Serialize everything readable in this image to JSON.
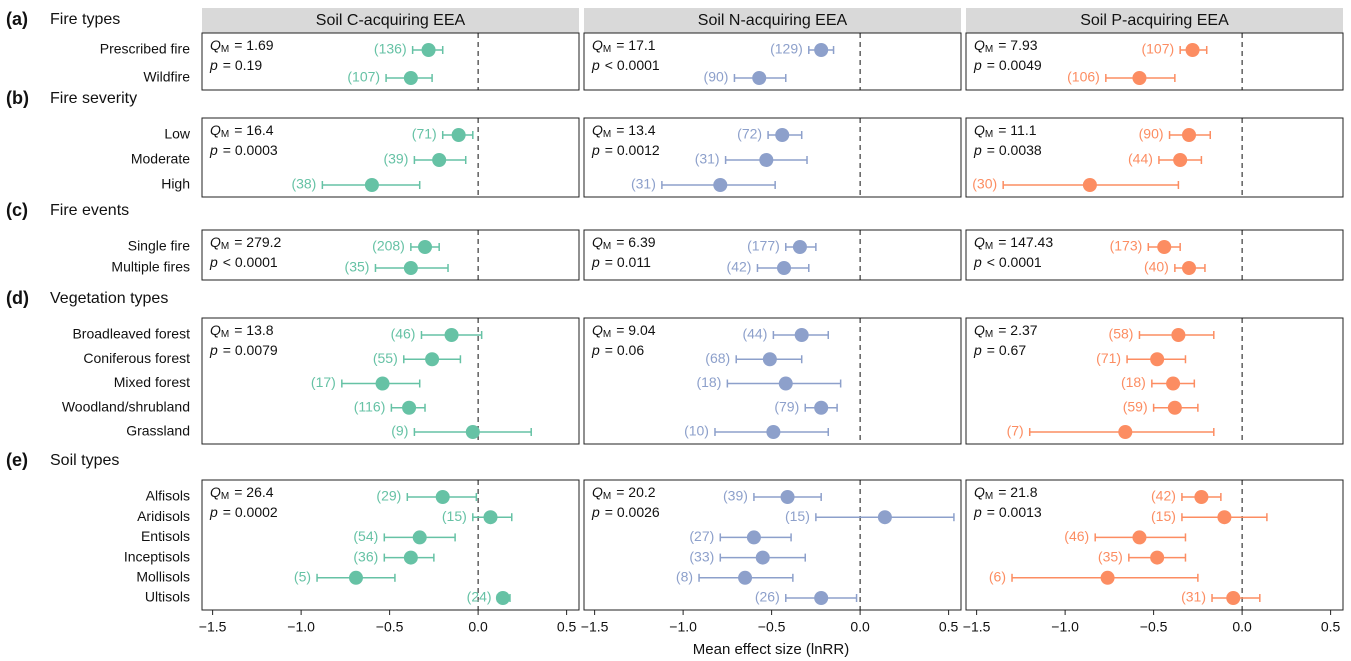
{
  "chart_data": {
    "type": "forest",
    "xlabel": "Mean effect size (lnRR)",
    "xlim": [
      -1.56,
      0.57
    ],
    "xticks": [
      {
        "value": -1.5,
        "label": "−1.5"
      },
      {
        "value": -1,
        "label": "−1.0"
      },
      {
        "value": -0.5,
        "label": "−0.5"
      },
      {
        "value": 0,
        "label": "0.0"
      },
      0.5
    ],
    "stat_q": "Q",
    "stat_sub": "M",
    "stat_p": "p",
    "groups": [
      {
        "tag": "(a)",
        "title": "Fire types",
        "categories": [
          "Prescribed fire",
          "Wildfire"
        ]
      },
      {
        "tag": "(b)",
        "title": "Fire severity",
        "categories": [
          "Low",
          "Moderate",
          "High"
        ]
      },
      {
        "tag": "(c)",
        "title": "Fire events",
        "categories": [
          "Single fire",
          "Multiple fires"
        ]
      },
      {
        "tag": "(d)",
        "title": "Vegetation types",
        "categories": [
          "Broadleaved forest",
          "Coniferous forest",
          "Mixed forest",
          "Woodland/shrubland",
          "Grassland"
        ]
      },
      {
        "tag": "(e)",
        "title": "Soil types",
        "categories": [
          "Alfisols",
          "Aridisols",
          "Entisols",
          "Inceptisols",
          "Mollisols",
          "Ultisols"
        ]
      }
    ],
    "series": [
      {
        "name": "Soil C-acquiring EEA",
        "color": "#66c2a5",
        "panels": [
          {
            "qm": "= 1.69",
            "p": "= 0.19",
            "values": [
              -0.28,
              -0.38
            ],
            "lower": [
              -0.37,
              -0.52
            ],
            "upper": [
              -0.2,
              -0.26
            ],
            "n_labels": [
              "(136)",
              "(107)"
            ]
          },
          {
            "qm": "= 16.4",
            "p": "= 0.0003",
            "values": [
              -0.11,
              -0.22,
              -0.6
            ],
            "lower": [
              -0.2,
              -0.36,
              -0.88
            ],
            "upper": [
              -0.03,
              -0.07,
              -0.33
            ],
            "n_labels": [
              "(71)",
              "(39)",
              "(38)"
            ]
          },
          {
            "qm": "= 279.2",
            "p": "< 0.0001",
            "values": [
              -0.3,
              -0.38
            ],
            "lower": [
              -0.38,
              -0.58
            ],
            "upper": [
              -0.22,
              -0.17
            ],
            "n_labels": [
              "(208)",
              "(35)"
            ]
          },
          {
            "qm": "= 13.8",
            "p": "= 0.0079",
            "values": [
              -0.15,
              -0.26,
              -0.54,
              -0.39,
              -0.03
            ],
            "lower": [
              -0.32,
              -0.42,
              -0.77,
              -0.49,
              -0.36
            ],
            "upper": [
              0.02,
              -0.1,
              -0.33,
              -0.3,
              0.3
            ],
            "n_labels": [
              "(46)",
              "(55)",
              "(17)",
              "(116)",
              "(9)"
            ]
          },
          {
            "qm": "= 26.4",
            "p": "= 0.0002",
            "values": [
              -0.2,
              0.07,
              -0.33,
              -0.38,
              -0.69,
              0.14
            ],
            "lower": [
              -0.4,
              -0.03,
              -0.53,
              -0.53,
              -0.91,
              0.11
            ],
            "upper": [
              -0.01,
              0.19,
              -0.13,
              -0.25,
              -0.47,
              0.18
            ],
            "n_labels": [
              "(29)",
              "(15)",
              "(54)",
              "(36)",
              "(5)",
              "(24)"
            ]
          }
        ]
      },
      {
        "name": "Soil N-acquiring EEA",
        "color": "#8da0cb",
        "panels": [
          {
            "qm": "= 17.1",
            "p": "< 0.0001",
            "values": [
              -0.22,
              -0.57
            ],
            "lower": [
              -0.29,
              -0.71
            ],
            "upper": [
              -0.15,
              -0.42
            ],
            "n_labels": [
              "(129)",
              "(90)"
            ]
          },
          {
            "qm": "= 13.4",
            "p": "= 0.0012",
            "values": [
              -0.44,
              -0.53,
              -0.79
            ],
            "lower": [
              -0.52,
              -0.76,
              -1.12
            ],
            "upper": [
              -0.33,
              -0.3,
              -0.48
            ],
            "n_labels": [
              "(72)",
              "(31)",
              "(31)"
            ]
          },
          {
            "qm": "= 6.39",
            "p": "= 0.011",
            "values": [
              -0.34,
              -0.43
            ],
            "lower": [
              -0.42,
              -0.58
            ],
            "upper": [
              -0.25,
              -0.29
            ],
            "n_labels": [
              "(177)",
              "(42)"
            ]
          },
          {
            "qm": "= 9.04",
            "p": "= 0.06",
            "values": [
              -0.33,
              -0.51,
              -0.42,
              -0.22,
              -0.49
            ],
            "lower": [
              -0.49,
              -0.7,
              -0.75,
              -0.31,
              -0.82
            ],
            "upper": [
              -0.18,
              -0.33,
              -0.11,
              -0.13,
              -0.18
            ],
            "n_labels": [
              "(44)",
              "(68)",
              "(18)",
              "(79)",
              "(10)"
            ]
          },
          {
            "qm": "= 20.2",
            "p": "= 0.0026",
            "values": [
              -0.41,
              0.14,
              -0.6,
              -0.55,
              -0.65,
              -0.22
            ],
            "lower": [
              -0.6,
              -0.25,
              -0.79,
              -0.79,
              -0.91,
              -0.42
            ],
            "upper": [
              -0.22,
              0.53,
              -0.39,
              -0.31,
              -0.38,
              -0.02
            ],
            "n_labels": [
              "(39)",
              "(15)",
              "(27)",
              "(33)",
              "(8)",
              "(26)"
            ]
          }
        ]
      },
      {
        "name": "Soil P-acquiring EEA",
        "color": "#fc8d62",
        "panels": [
          {
            "qm": "= 7.93",
            "p": "= 0.0049",
            "values": [
              -0.28,
              -0.58
            ],
            "lower": [
              -0.35,
              -0.77
            ],
            "upper": [
              -0.2,
              -0.38
            ],
            "n_labels": [
              "(107)",
              "(106)"
            ]
          },
          {
            "qm": "= 11.1",
            "p": "= 0.0038",
            "values": [
              -0.3,
              -0.35,
              -0.86
            ],
            "lower": [
              -0.41,
              -0.47,
              -1.35
            ],
            "upper": [
              -0.18,
              -0.23,
              -0.36
            ],
            "n_labels": [
              "(90)",
              "(44)",
              "(30)"
            ]
          },
          {
            "qm": "= 147.43",
            "p": "< 0.0001",
            "values": [
              -0.44,
              -0.3
            ],
            "lower": [
              -0.53,
              -0.38
            ],
            "upper": [
              -0.35,
              -0.21
            ],
            "n_labels": [
              "(173)",
              "(40)"
            ]
          },
          {
            "qm": "= 2.37",
            "p": "= 0.67",
            "values": [
              -0.36,
              -0.48,
              -0.39,
              -0.38,
              -0.66
            ],
            "lower": [
              -0.58,
              -0.65,
              -0.51,
              -0.5,
              -1.2
            ],
            "upper": [
              -0.16,
              -0.32,
              -0.27,
              -0.25,
              -0.16
            ],
            "n_labels": [
              "(58)",
              "(71)",
              "(18)",
              "(59)",
              "(7)"
            ]
          },
          {
            "qm": "= 21.8",
            "p": "= 0.0013",
            "values": [
              -0.23,
              -0.1,
              -0.58,
              -0.48,
              -0.76,
              -0.05
            ],
            "lower": [
              -0.34,
              -0.34,
              -0.83,
              -0.64,
              -1.3,
              -0.17
            ],
            "upper": [
              -0.12,
              0.14,
              -0.32,
              -0.32,
              -0.25,
              0.1
            ],
            "n_labels": [
              "(42)",
              "(15)",
              "(46)",
              "(35)",
              "(6)",
              "(31)"
            ]
          }
        ]
      }
    ]
  }
}
